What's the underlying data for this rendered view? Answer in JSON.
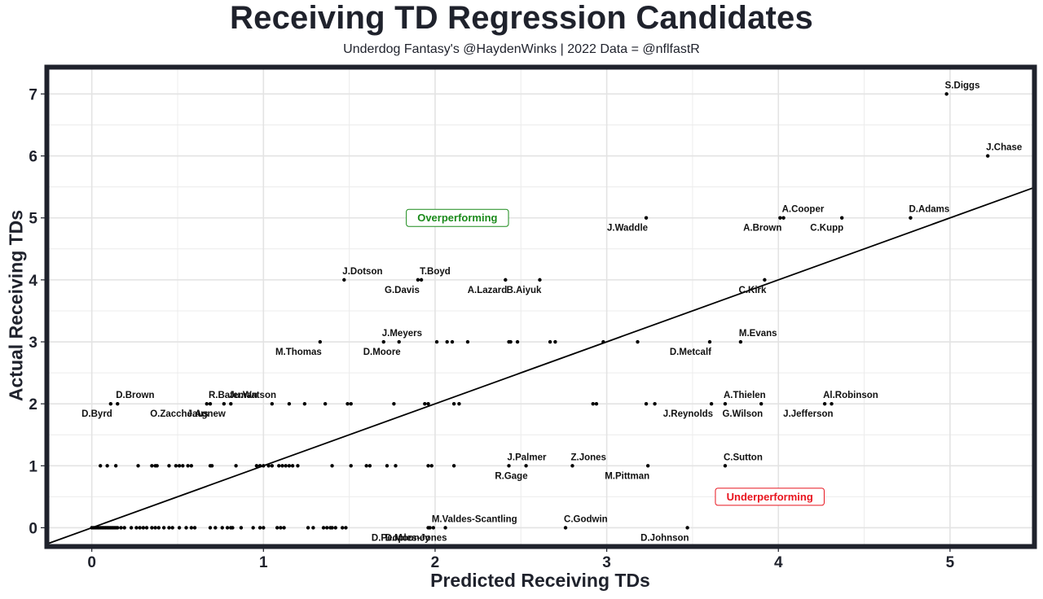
{
  "chart_data": {
    "type": "scatter",
    "title": "Receiving TD Regression Candidates",
    "subtitle": "Underdog Fantasy's @HaydenWinks | 2022 Data = @nflfastR",
    "xlabel": "Predicted Receiving TDs",
    "ylabel": "Actual Receiving TDs",
    "xlim": [
      -0.25,
      5.48
    ],
    "ylim": [
      -0.27,
      7.4
    ],
    "x_ticks": [
      0,
      1,
      2,
      3,
      4,
      5
    ],
    "y_ticks": [
      0,
      1,
      2,
      3,
      4,
      5,
      6,
      7
    ],
    "grid": true,
    "reference_line": {
      "label": "y = x",
      "slope": 1,
      "intercept": 0
    },
    "annotations": [
      {
        "text": "Overperforming",
        "x": 2.13,
        "y": 5.0,
        "color": "#1a8a1a"
      },
      {
        "text": "Underperforming",
        "x": 3.95,
        "y": 0.5,
        "color": "#e8141e"
      }
    ],
    "labeled_points": [
      {
        "label": "S.Diggs",
        "x": 4.98,
        "y": 7,
        "pos": "above"
      },
      {
        "label": "J.Chase",
        "x": 5.22,
        "y": 6,
        "pos": "above"
      },
      {
        "label": "A.Cooper",
        "x": 4.03,
        "y": 5,
        "pos": "above"
      },
      {
        "label": "D.Adams",
        "x": 4.77,
        "y": 5,
        "pos": "above"
      },
      {
        "label": "J.Waddle",
        "x": 3.23,
        "y": 5,
        "pos": "below"
      },
      {
        "label": "A.Brown",
        "x": 4.01,
        "y": 5,
        "pos": "below"
      },
      {
        "label": "C.Kupp",
        "x": 4.37,
        "y": 5,
        "pos": "below"
      },
      {
        "label": "J.Dotson",
        "x": 1.47,
        "y": 4,
        "pos": "above"
      },
      {
        "label": "T.Boyd",
        "x": 1.92,
        "y": 4,
        "pos": "above"
      },
      {
        "label": "G.Davis",
        "x": 1.9,
        "y": 4,
        "pos": "below"
      },
      {
        "label": "A.Lazard",
        "x": 2.41,
        "y": 4,
        "pos": "below"
      },
      {
        "label": "B.Aiyuk",
        "x": 2.61,
        "y": 4,
        "pos": "below"
      },
      {
        "label": "C.Kirk",
        "x": 3.92,
        "y": 4,
        "pos": "below"
      },
      {
        "label": "J.Meyers",
        "x": 1.7,
        "y": 3,
        "pos": "above"
      },
      {
        "label": "M.Thomas",
        "x": 1.33,
        "y": 3,
        "pos": "below"
      },
      {
        "label": "D.Moore",
        "x": 1.79,
        "y": 3,
        "pos": "below"
      },
      {
        "label": "D.Metcalf",
        "x": 3.6,
        "y": 3,
        "pos": "below"
      },
      {
        "label": "M.Evans",
        "x": 3.78,
        "y": 3,
        "pos": "above"
      },
      {
        "label": "D.Brown",
        "x": 0.15,
        "y": 2,
        "pos": "above"
      },
      {
        "label": "D.Byrd",
        "x": 0.11,
        "y": 2,
        "pos": "below"
      },
      {
        "label": "R.Bateman",
        "x": 0.69,
        "y": 2,
        "pos": "above"
      },
      {
        "label": "O.Zaccheaus",
        "x": 0.67,
        "y": 2,
        "pos": "below"
      },
      {
        "label": "Ju.Watson",
        "x": 0.81,
        "y": 2,
        "pos": "above"
      },
      {
        "label": "J.Agnew",
        "x": 0.77,
        "y": 2,
        "pos": "below"
      },
      {
        "label": "A.Thielen",
        "x": 3.69,
        "y": 2,
        "pos": "above"
      },
      {
        "label": "J.Reynolds",
        "x": 3.61,
        "y": 2,
        "pos": "below"
      },
      {
        "label": "Al.Robinson",
        "x": 4.27,
        "y": 2,
        "pos": "above"
      },
      {
        "label": "G.Wilson",
        "x": 3.9,
        "y": 2,
        "pos": "below"
      },
      {
        "label": "J.Jefferson",
        "x": 4.31,
        "y": 2,
        "pos": "below"
      },
      {
        "label": "J.Palmer",
        "x": 2.43,
        "y": 1,
        "pos": "above"
      },
      {
        "label": "R.Gage",
        "x": 2.53,
        "y": 1,
        "pos": "below"
      },
      {
        "label": "Z.Jones",
        "x": 2.8,
        "y": 1,
        "pos": "above"
      },
      {
        "label": "M.Pittman",
        "x": 3.24,
        "y": 1,
        "pos": "below"
      },
      {
        "label": "C.Sutton",
        "x": 3.69,
        "y": 1,
        "pos": "above"
      },
      {
        "label": "M.Valdes-Scantling",
        "x": 1.99,
        "y": 0,
        "pos": "above"
      },
      {
        "label": "D.Mooney",
        "x": 1.96,
        "y": 0,
        "pos": "below"
      },
      {
        "label": "D.Peoples-Jones",
        "x": 2.06,
        "y": 0,
        "pos": "below"
      },
      {
        "label": "C.Godwin",
        "x": 2.76,
        "y": 0,
        "pos": "above"
      },
      {
        "label": "D.Johnson",
        "x": 3.47,
        "y": 0,
        "pos": "below"
      }
    ],
    "unlabeled_points": {
      "y0_x": [
        0.0,
        0.01,
        0.02,
        0.03,
        0.04,
        0.05,
        0.06,
        0.07,
        0.08,
        0.09,
        0.1,
        0.11,
        0.12,
        0.13,
        0.14,
        0.15,
        0.17,
        0.19,
        0.23,
        0.26,
        0.28,
        0.3,
        0.32,
        0.35,
        0.37,
        0.39,
        0.42,
        0.45,
        0.47,
        0.51,
        0.55,
        0.58,
        0.6,
        0.69,
        0.72,
        0.76,
        0.79,
        0.81,
        0.82,
        0.87,
        0.94,
        0.98,
        1.0,
        1.08,
        1.1,
        1.12,
        1.26,
        1.29,
        1.35,
        1.37,
        1.39,
        1.4,
        1.42,
        1.46,
        1.48,
        1.97
      ],
      "y1_x": [
        0.05,
        0.09,
        0.14,
        0.27,
        0.35,
        0.37,
        0.38,
        0.45,
        0.49,
        0.51,
        0.53,
        0.56,
        0.58,
        0.69,
        0.7,
        0.84,
        0.96,
        0.98,
        1.0,
        1.03,
        1.05,
        1.09,
        1.11,
        1.13,
        1.15,
        1.17,
        1.2,
        1.4,
        1.51,
        1.6,
        1.62,
        1.72,
        1.77,
        1.96,
        1.98,
        2.11
      ],
      "y2_x": [
        1.05,
        1.15,
        1.24,
        1.36,
        1.49,
        1.51,
        1.76,
        1.94,
        1.96,
        2.11,
        2.14,
        2.92,
        2.94,
        3.23,
        3.28
      ],
      "y3_x": [
        2.01,
        2.07,
        2.1,
        2.19,
        2.43,
        2.44,
        2.48,
        2.67,
        2.7,
        2.98,
        3.18
      ]
    }
  }
}
